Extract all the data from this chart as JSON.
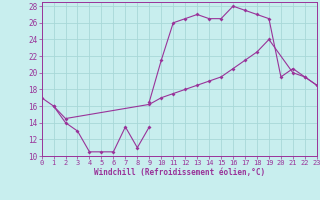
{
  "bg_color": "#c8eeee",
  "grid_color": "#a8d8d8",
  "line_color": "#993399",
  "xlim": [
    0,
    23
  ],
  "ylim": [
    10,
    28.5
  ],
  "xticks": [
    0,
    1,
    2,
    3,
    4,
    5,
    6,
    7,
    8,
    9,
    10,
    11,
    12,
    13,
    14,
    15,
    16,
    17,
    18,
    19,
    20,
    21,
    22,
    23
  ],
  "yticks": [
    10,
    12,
    14,
    16,
    18,
    20,
    22,
    24,
    26,
    28
  ],
  "xlabel": "Windchill (Refroidissement éolien,°C)",
  "line1_x": [
    0,
    1,
    2,
    3,
    4,
    5,
    6,
    7,
    8,
    9
  ],
  "line1_y": [
    17.0,
    16.0,
    14.0,
    13.0,
    10.5,
    10.5,
    10.5,
    13.5,
    11.0,
    13.5
  ],
  "line2_x": [
    1,
    2,
    9,
    10,
    11,
    12,
    13,
    14,
    15,
    16,
    17,
    18,
    19,
    21,
    22,
    23
  ],
  "line2_y": [
    16.0,
    14.5,
    16.2,
    17.0,
    17.5,
    18.0,
    18.5,
    19.0,
    19.5,
    20.5,
    21.5,
    22.5,
    24.0,
    20.0,
    19.5,
    18.5
  ],
  "line3_x": [
    9,
    10,
    11,
    12,
    13,
    14,
    15,
    16,
    17,
    18,
    19,
    20,
    21,
    22,
    23
  ],
  "line3_y": [
    16.5,
    21.5,
    26.0,
    26.5,
    27.0,
    26.5,
    26.5,
    28.0,
    27.5,
    27.0,
    26.5,
    19.5,
    20.5,
    19.5,
    18.5
  ],
  "lw": 0.8,
  "ms": 2.0,
  "tick_fontsize": 5.0,
  "xlabel_fontsize": 5.5
}
